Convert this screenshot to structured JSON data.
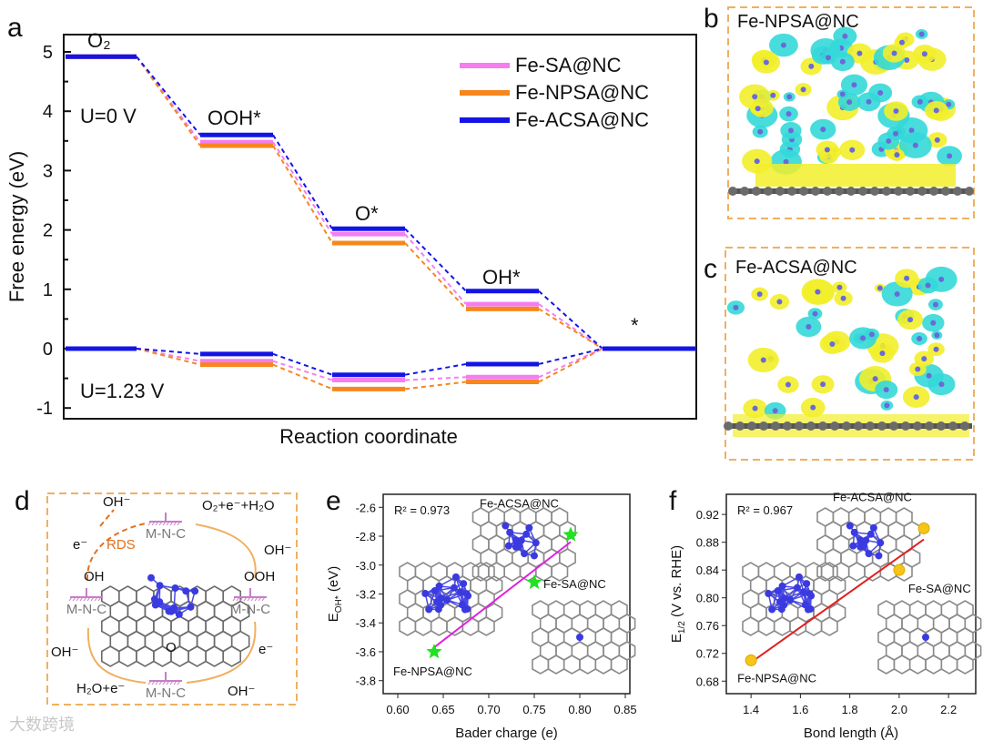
{
  "panel_labels": {
    "a": "a",
    "b": "b",
    "c": "c",
    "d": "d",
    "e": "e",
    "f": "f"
  },
  "colors": {
    "Fe-SA@NC": "#f47ef0",
    "Fe-NPSA@NC": "#f7861e",
    "Fe-ACSA@NC": "#1414e6",
    "frame": "#f0b060",
    "fit_e": "#e020e0",
    "fit_f": "#e02020",
    "star": "#22e022",
    "sphere": "#f5c518"
  },
  "chart_data": [
    {
      "type": "line",
      "title": "",
      "xlabel": "Reaction coordinate",
      "ylabel": "Free energy (eV)",
      "ylim": [
        -1,
        5.5
      ],
      "yticks": [
        -1,
        0,
        1,
        2,
        3,
        4,
        5
      ],
      "categories": [
        "O₂",
        "OOH*",
        "O*",
        "OH*",
        "*"
      ],
      "legend_position": "top-right",
      "annotations": [
        "U=0 V",
        "U=1.23 V"
      ],
      "series": [
        {
          "name": "Fe-SA@NC",
          "U0": [
            4.92,
            3.48,
            1.93,
            0.75,
            0
          ],
          "U123": [
            0,
            -0.21,
            -0.53,
            -0.48,
            0
          ]
        },
        {
          "name": "Fe-NPSA@NC",
          "U0": [
            4.92,
            3.42,
            1.78,
            0.67,
            0
          ],
          "U123": [
            0,
            -0.27,
            -0.68,
            -0.56,
            0
          ]
        },
        {
          "name": "Fe-ACSA@NC",
          "U0": [
            4.92,
            3.6,
            2.02,
            0.97,
            0
          ],
          "U123": [
            0,
            -0.09,
            -0.44,
            -0.26,
            0
          ]
        }
      ]
    },
    {
      "type": "scatter",
      "xlabel": "Bader charge (e)",
      "ylabel": "E",
      "ylabel_sub": "OH*",
      "ylabel_unit": " (eV)",
      "xlim": [
        0.584,
        0.855
      ],
      "ylim": [
        -3.89,
        -2.51
      ],
      "xticks": [
        "0.60",
        "0.65",
        "0.70",
        "0.75",
        "0.80",
        "0.85"
      ],
      "yticks": [
        "-2.6",
        "-2.8",
        "-3.0",
        "-3.2",
        "-3.4",
        "-3.6",
        "-3.8"
      ],
      "annotation": "R² = 0.973",
      "points": [
        {
          "name": "Fe-NPSA@NC",
          "x": 0.64,
          "y": -3.6
        },
        {
          "name": "Fe-SA@NC",
          "x": 0.75,
          "y": -3.12
        },
        {
          "name": "Fe-ACSA@NC",
          "x": 0.79,
          "y": -2.79
        }
      ],
      "fit": {
        "x": [
          0.64,
          0.79
        ],
        "y": [
          -3.57,
          -2.84
        ]
      }
    },
    {
      "type": "scatter",
      "xlabel": "Bond length (Å)",
      "ylabel": "E",
      "ylabel_sub": "1/2",
      "ylabel_unit": " (V vs. RHE)",
      "xlim": [
        1.3,
        2.31
      ],
      "ylim": [
        0.662,
        0.949
      ],
      "xticks": [
        "1.4",
        "1.6",
        "1.8",
        "2.0",
        "2.2"
      ],
      "yticks": [
        "0.92",
        "0.88",
        "0.84",
        "0.80",
        "0.76",
        "0.72",
        "0.68"
      ],
      "annotation": "R² = 0.967",
      "points": [
        {
          "name": "Fe-NPSA@NC",
          "x": 1.4,
          "y": 0.71
        },
        {
          "name": "Fe-SA@NC",
          "x": 2.0,
          "y": 0.84
        },
        {
          "name": "Fe-ACSA@NC",
          "x": 2.1,
          "y": 0.9
        }
      ],
      "fit": {
        "x": [
          1.4,
          2.1
        ],
        "y": [
          0.707,
          0.884
        ]
      }
    }
  ],
  "panel_b": {
    "title": "Fe-NPSA@NC"
  },
  "panel_c": {
    "title": "Fe-ACSA@NC"
  },
  "panel_d": {
    "site": "M-N-C",
    "labels": [
      "OH⁻",
      "e⁻",
      "RDS",
      "O₂+e⁻+H₂O",
      "OH⁻",
      "OH",
      "OOH",
      "O",
      "OH⁻",
      "H₂O+e⁻",
      "e⁻",
      "OH⁻"
    ]
  },
  "watermark": "大数跨境"
}
